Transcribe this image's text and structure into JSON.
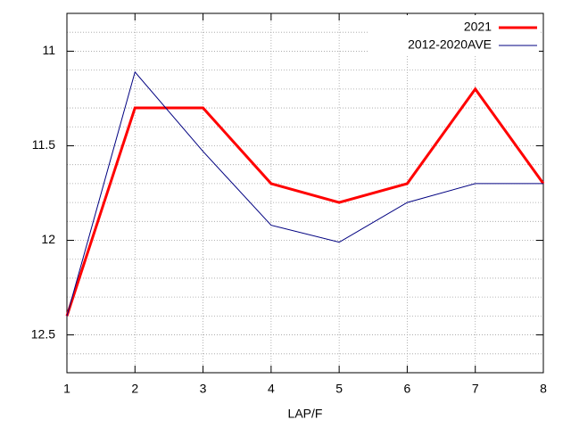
{
  "chart_data": {
    "type": "line",
    "x_label": "LAP/F",
    "x": [
      1,
      2,
      3,
      4,
      5,
      6,
      7,
      8
    ],
    "xlim": [
      1,
      8
    ],
    "xticks": [
      1,
      2,
      3,
      4,
      5,
      6,
      7,
      8
    ],
    "ylim": [
      10.8,
      12.7
    ],
    "yticks": [
      11,
      11.5,
      12,
      12.5
    ],
    "y_reversed": true,
    "grid": true,
    "legend": "top-right",
    "series": [
      {
        "name": "2021",
        "color": "#ff0000",
        "values": [
          12.4,
          11.3,
          11.3,
          11.7,
          11.8,
          11.7,
          11.2,
          11.7
        ]
      },
      {
        "name": "2012-2020AVE",
        "color": "#000080",
        "values": [
          12.4,
          11.11,
          11.53,
          11.92,
          12.01,
          11.8,
          11.7,
          11.7
        ]
      }
    ]
  }
}
